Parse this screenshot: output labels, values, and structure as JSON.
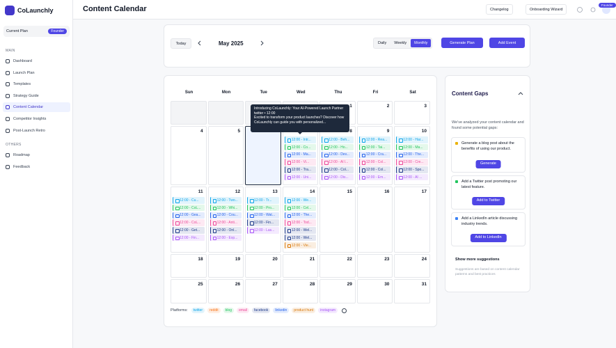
{
  "sidebar": {
    "brand": "CoLaunchly",
    "plan_label": "Current Plan",
    "plan_badge": "Founder",
    "sections": [
      {
        "title": "MAIN",
        "items": [
          {
            "label": "Dashboard"
          },
          {
            "label": "Launch Plan"
          },
          {
            "label": "Templates"
          },
          {
            "label": "Strategy Guide"
          },
          {
            "label": "Content Calendar",
            "active": true
          },
          {
            "label": "Competitor Insights"
          },
          {
            "label": "Post-Launch Retro"
          }
        ]
      },
      {
        "title": "OTHERS",
        "items": [
          {
            "label": "Roadmap"
          },
          {
            "label": "Feedback"
          }
        ]
      }
    ]
  },
  "header": {
    "title": "Content Calendar",
    "buttons": [
      "Changelog",
      "Onboarding Wizard"
    ],
    "avatar_badge": "Founder"
  },
  "toolbar": {
    "today": "Today",
    "month": "May 2025",
    "views": [
      {
        "label": "Daily"
      },
      {
        "label": "Weekly"
      },
      {
        "label": "Monthly",
        "active": true
      }
    ],
    "generate": "Generate Plan",
    "add": "Add Event"
  },
  "calendar": {
    "weekdays": [
      "Sun",
      "Mon",
      "Tue",
      "Wed",
      "Thu",
      "Fri",
      "Sat"
    ],
    "weeks": [
      [
        null,
        null,
        null,
        null,
        {
          "day": 1,
          "events": []
        },
        {
          "day": 2,
          "events": []
        },
        {
          "day": 3,
          "events": []
        }
      ],
      [
        {
          "day": 4,
          "events": []
        },
        {
          "day": 5,
          "events": []
        },
        {
          "day": 6,
          "selected": true,
          "events": []
        },
        {
          "day": 7,
          "events": [
            {
              "label": "12:00 - Intr...",
              "platform": "twitter"
            },
            {
              "label": "12:00 - Co...",
              "platform": "blog"
            },
            {
              "label": "12:00 - Ma...",
              "platform": "linkedin"
            },
            {
              "label": "12:00 - Vi...",
              "platform": "email"
            },
            {
              "label": "12:00 - Tra...",
              "platform": "facebook"
            },
            {
              "label": "12:00 - Uni...",
              "platform": "instagram"
            }
          ]
        },
        {
          "day": 8,
          "events": [
            {
              "label": "12:00 - Beh...",
              "platform": "twitter"
            },
            {
              "label": "12:00 - Ho...",
              "platform": "blog"
            },
            {
              "label": "12:00 - Dev...",
              "platform": "linkedin"
            },
            {
              "label": "12:00 - AI l...",
              "platform": "email"
            },
            {
              "label": "12:00 - Col...",
              "platform": "facebook"
            },
            {
              "label": "12:00 - Dis...",
              "platform": "instagram"
            }
          ]
        },
        {
          "day": 9,
          "events": [
            {
              "label": "12:00 - Rea...",
              "platform": "twitter"
            },
            {
              "label": "12:00 - Tai...",
              "platform": "blog"
            },
            {
              "label": "12:00 - Cra...",
              "platform": "linkedin"
            },
            {
              "label": "12:00 - Col...",
              "platform": "email"
            },
            {
              "label": "12:00 - Col...",
              "platform": "facebook"
            },
            {
              "label": "12:00 - Em...",
              "platform": "instagram"
            }
          ]
        },
        {
          "day": 10,
          "events": [
            {
              "label": "12:00 - Har...",
              "platform": "twitter"
            },
            {
              "label": "12:00 - Ma...",
              "platform": "blog"
            },
            {
              "label": "12:00 - The...",
              "platform": "linkedin"
            },
            {
              "label": "12:00 - Cre...",
              "platform": "email"
            },
            {
              "label": "12:00 - Spo...",
              "platform": "facebook"
            },
            {
              "label": "12:00 - AI ...",
              "platform": "instagram"
            }
          ]
        }
      ],
      [
        {
          "day": 11,
          "events": [
            {
              "label": "12:00 - Cu...",
              "platform": "twitter"
            },
            {
              "label": "12:00 - CoL...",
              "platform": "blog"
            },
            {
              "label": "12:00 - Gea...",
              "platform": "linkedin"
            },
            {
              "label": "12:00 - CoL...",
              "platform": "email"
            },
            {
              "label": "12:00 - Get...",
              "platform": "facebook"
            },
            {
              "label": "12:00 - Fin...",
              "platform": "instagram"
            }
          ]
        },
        {
          "day": 12,
          "events": [
            {
              "label": "12:00 - Two...",
              "platform": "twitter"
            },
            {
              "label": "12:00 - Whi...",
              "platform": "blog"
            },
            {
              "label": "12:00 - Cou...",
              "platform": "linkedin"
            },
            {
              "label": "12:00 - Anti...",
              "platform": "email"
            },
            {
              "label": "12:00 - Onl...",
              "platform": "facebook"
            },
            {
              "label": "12:00 - Exp...",
              "platform": "instagram"
            }
          ]
        },
        {
          "day": 13,
          "events": [
            {
              "label": "12:00 - Tr...",
              "platform": "twitter"
            },
            {
              "label": "12:00 - Pro...",
              "platform": "blog"
            },
            {
              "label": "12:00 - Wat...",
              "platform": "linkedin"
            },
            {
              "label": "12:00 - Fin...",
              "platform": "facebook"
            },
            {
              "label": "12:00 - Las...",
              "platform": "instagram"
            }
          ]
        },
        {
          "day": 14,
          "events": [
            {
              "label": "12:00 - We...",
              "platform": "twitter"
            },
            {
              "label": "12:00 - Cel...",
              "platform": "blog"
            },
            {
              "label": "12:00 - The...",
              "platform": "linkedin"
            },
            {
              "label": "12:00 - Tod...",
              "platform": "email"
            },
            {
              "label": "12:00 - Wel...",
              "platform": "facebook"
            },
            {
              "label": "12:00 - Wel...",
              "platform": "facebook"
            },
            {
              "label": "12:00 - Vie...",
              "platform": "product hunt"
            }
          ]
        },
        {
          "day": 15,
          "events": []
        },
        {
          "day": 16,
          "events": []
        },
        {
          "day": 17,
          "events": []
        }
      ],
      [
        {
          "day": 18,
          "events": []
        },
        {
          "day": 19,
          "events": []
        },
        {
          "day": 20,
          "events": []
        },
        {
          "day": 21,
          "events": []
        },
        {
          "day": 22,
          "events": []
        },
        {
          "day": 23,
          "events": []
        },
        {
          "day": 24,
          "events": []
        }
      ],
      [
        {
          "day": 25,
          "events": []
        },
        {
          "day": 26,
          "events": []
        },
        {
          "day": 27,
          "events": []
        },
        {
          "day": 28,
          "events": []
        },
        {
          "day": 29,
          "events": []
        },
        {
          "day": 30,
          "events": []
        },
        {
          "day": 31,
          "events": []
        }
      ]
    ]
  },
  "tooltip": {
    "title": "Introducing CoLaunchly: Your AI-Powered Launch Partner",
    "meta": "twitter • 12:00",
    "body": "Excited to transform your product launches? Discover how CoLaunchly can guide you with personalized..."
  },
  "legend": {
    "label": "Platforms:",
    "platforms": [
      {
        "name": "twitter",
        "color": "#0ea5e9"
      },
      {
        "name": "reddit",
        "color": "#f97316"
      },
      {
        "name": "blog",
        "color": "#22c55e"
      },
      {
        "name": "email",
        "color": "#ec4899"
      },
      {
        "name": "facebook",
        "color": "#1e3a8a"
      },
      {
        "name": "linkedin",
        "color": "#2563eb"
      },
      {
        "name": "product hunt",
        "color": "#d97706"
      },
      {
        "name": "instagram",
        "color": "#a855f7"
      }
    ]
  },
  "gaps": {
    "title": "Content Gaps",
    "intro": "We've analyzed your content calendar and found some potential gaps:",
    "items": [
      {
        "text": "Generate a blog post about the benefits of using our product.",
        "button": "Generate",
        "icon_color": "#eab308"
      },
      {
        "text": "Add a Twitter post promoting our latest feature.",
        "button": "Add to Twitter",
        "icon_color": "#22c55e"
      },
      {
        "text": "Add a LinkedIn article discussing industry trends.",
        "button": "Add to LinkedIn",
        "icon_color": "#3b82f6"
      }
    ],
    "more": "Show more suggestions",
    "note": "Suggestions are based on content calendar patterns and best practices"
  }
}
